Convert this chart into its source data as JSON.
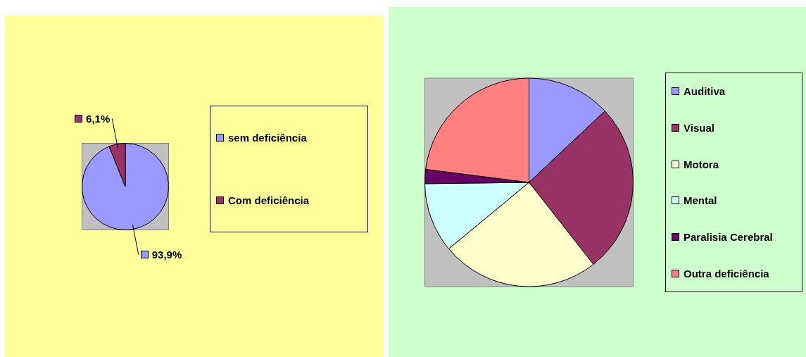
{
  "chart_data": [
    {
      "type": "pie",
      "categories": [
        "sem deficiência",
        "Com deficiência"
      ],
      "values": [
        93.9,
        6.1
      ],
      "colors": [
        "#9999ff",
        "#993366"
      ],
      "value_labels": [
        "93,9%",
        "6,1%"
      ],
      "legend": "right"
    },
    {
      "type": "pie",
      "categories": [
        "Auditiva",
        "Visual",
        "Motora",
        "Mental",
        "Paralisia Cerebral",
        "Outra deficiência"
      ],
      "values": [
        13,
        26.4,
        24.6,
        10.8,
        2.2,
        23
      ],
      "colors": [
        "#9999ff",
        "#993366",
        "#ffffcc",
        "#ccffff",
        "#660066",
        "#ff8080"
      ],
      "legend": "right"
    }
  ]
}
